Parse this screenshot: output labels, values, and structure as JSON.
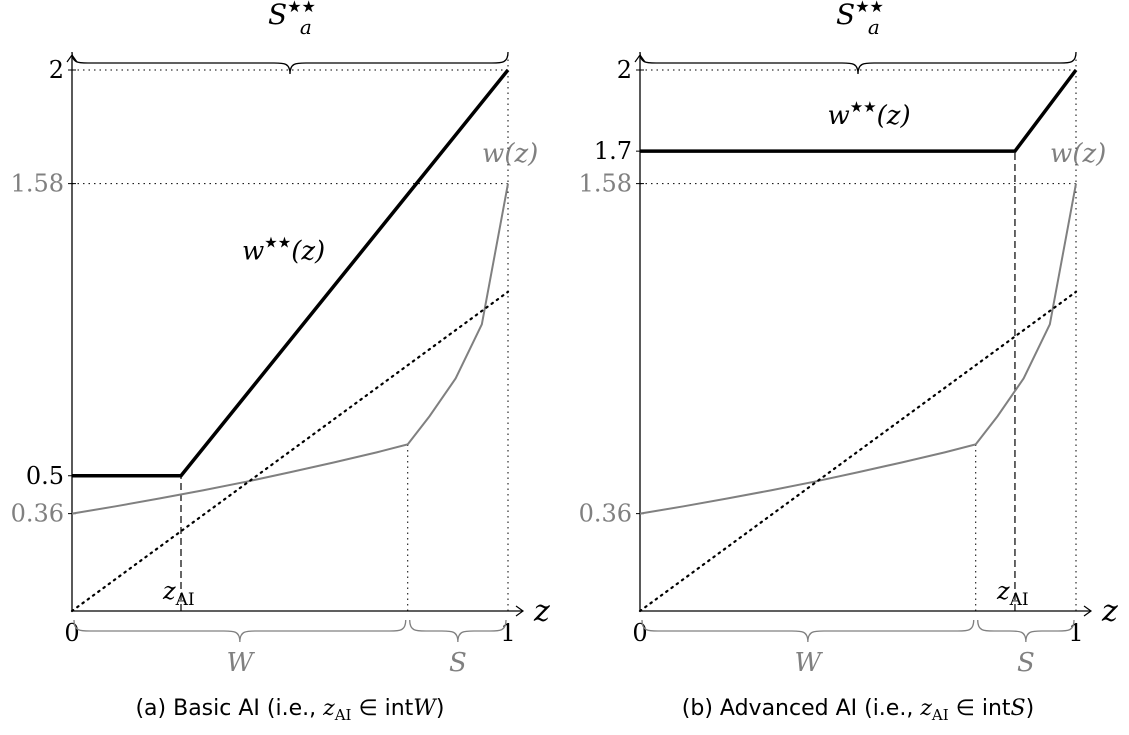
{
  "colors": {
    "black": "#000000",
    "gray": "#808080"
  },
  "chart_data": [
    {
      "type": "line",
      "caption": {
        "prefix": "(a) Basic AI (i.e., ",
        "zsub": "AI",
        "in": " ∈ int",
        "set": "W",
        "suffix": ")"
      },
      "xlim": [
        0,
        1
      ],
      "ylim": [
        0,
        2
      ],
      "x_axis_label": "z",
      "x_ticks": [
        {
          "value": 0,
          "label": "0"
        },
        {
          "value": 1,
          "label": "1"
        }
      ],
      "y_ticks": [
        {
          "value": 2,
          "label": "2",
          "color": "black"
        },
        {
          "value": 1.58,
          "label": "1.58",
          "color": "gray"
        },
        {
          "value": 0.5,
          "label": "0.5",
          "color": "black"
        },
        {
          "value": 0.36,
          "label": "0.36",
          "color": "gray"
        }
      ],
      "z_ai": 0.25,
      "w_boundary": 0.77,
      "top_brace_label": {
        "base": "S",
        "sub": "a",
        "sup": "★★"
      },
      "bottom_braces": [
        {
          "label": "W",
          "from": 0,
          "to": 0.77
        },
        {
          "label": "S",
          "from": 0.77,
          "to": 1
        }
      ],
      "series": [
        {
          "name": "w★★(z)",
          "label_base": "w",
          "label_sup": "★★",
          "label_arg": "(z)",
          "color": "black",
          "x": [
            0,
            0.25,
            1
          ],
          "y": [
            0.5,
            0.5,
            2
          ],
          "label_at": [
            0.39,
            1.3
          ]
        },
        {
          "name": "w(z)",
          "label_base": "w",
          "label_sup": "",
          "label_arg": "(z)",
          "color": "gray",
          "x": [
            0,
            0.1,
            0.2,
            0.3,
            0.4,
            0.5,
            0.6,
            0.7,
            0.77,
            0.82,
            0.88,
            0.94,
            1.0
          ],
          "y": [
            0.36,
            0.387,
            0.416,
            0.446,
            0.478,
            0.513,
            0.549,
            0.587,
            0.616,
            0.72,
            0.86,
            1.06,
            1.58
          ],
          "label_at": [
            1.005,
            1.66
          ]
        },
        {
          "name": "45°",
          "color": "black",
          "dotted": true,
          "x": [
            0,
            1
          ],
          "y": [
            0,
            1.18
          ]
        }
      ]
    },
    {
      "type": "line",
      "caption": {
        "prefix": "(b) Advanced AI (i.e., ",
        "zsub": "AI",
        "in": " ∈ int",
        "set": "S",
        "suffix": ")"
      },
      "xlim": [
        0,
        1
      ],
      "ylim": [
        0,
        2
      ],
      "x_axis_label": "z",
      "x_ticks": [
        {
          "value": 0,
          "label": "0"
        },
        {
          "value": 1,
          "label": "1"
        }
      ],
      "y_ticks": [
        {
          "value": 2,
          "label": "2",
          "color": "black"
        },
        {
          "value": 1.7,
          "label": "1.7",
          "color": "black"
        },
        {
          "value": 1.58,
          "label": "1.58",
          "color": "gray"
        },
        {
          "value": 0.36,
          "label": "0.36",
          "color": "gray"
        }
      ],
      "z_ai": 0.86,
      "w_boundary": 0.77,
      "top_brace_label": {
        "base": "S",
        "sub": "a",
        "sup": "★★"
      },
      "bottom_braces": [
        {
          "label": "W",
          "from": 0,
          "to": 0.77
        },
        {
          "label": "S",
          "from": 0.77,
          "to": 1
        }
      ],
      "series": [
        {
          "name": "w★★(z)",
          "label_base": "w",
          "label_sup": "★★",
          "label_arg": "(z)",
          "color": "black",
          "x": [
            0,
            0.86,
            1
          ],
          "y": [
            1.7,
            1.7,
            2
          ],
          "label_at": [
            0.43,
            1.8
          ]
        },
        {
          "name": "w(z)",
          "label_base": "w",
          "label_sup": "",
          "label_arg": "(z)",
          "color": "gray",
          "x": [
            0,
            0.1,
            0.2,
            0.3,
            0.4,
            0.5,
            0.6,
            0.7,
            0.77,
            0.82,
            0.88,
            0.94,
            1.0
          ],
          "y": [
            0.36,
            0.387,
            0.416,
            0.446,
            0.478,
            0.513,
            0.549,
            0.587,
            0.616,
            0.72,
            0.86,
            1.06,
            1.58
          ],
          "label_at": [
            1.005,
            1.66
          ]
        },
        {
          "name": "45°",
          "color": "black",
          "dotted": true,
          "x": [
            0,
            1
          ],
          "y": [
            0,
            1.18
          ]
        }
      ]
    }
  ]
}
